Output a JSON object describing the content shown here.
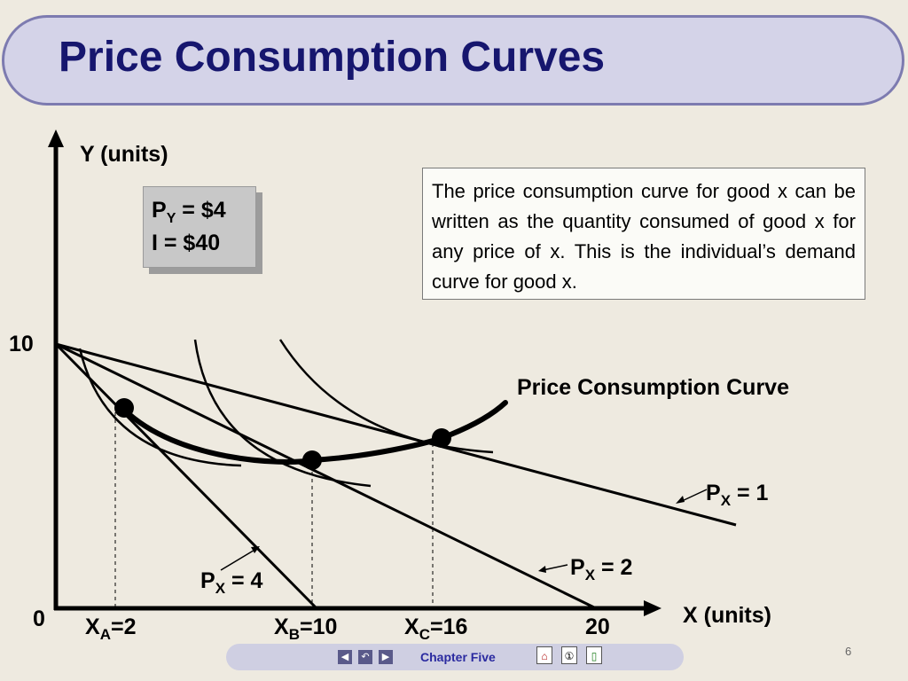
{
  "title": "Price Consumption Curves",
  "given": {
    "py_main": "P",
    "py_sub": "Y",
    "py_value": " = $4",
    "income": "I = $40"
  },
  "note": "The price consumption curve for good x can be written as the quantity consumed of good x for any price of x.  This is the individual’s demand curve for good x.",
  "axes": {
    "y_label": "Y (units)",
    "x_label": "X (units)",
    "y_tick": "10",
    "origin": "0",
    "x_end": "20"
  },
  "points": {
    "a": {
      "main": "X",
      "sub": "A",
      "value": "=2"
    },
    "b": {
      "main": "X",
      "sub": "B",
      "value": "=10"
    },
    "c": {
      "main": "X",
      "sub": "C",
      "value": "=16"
    }
  },
  "curve_label": "Price Consumption Curve",
  "budget_labels": {
    "px1": {
      "main": "P",
      "sub": "X",
      "value": " = 1"
    },
    "px2": {
      "main": "P",
      "sub": "X",
      "value": " = 2"
    },
    "px4": {
      "main": "P",
      "sub": "X",
      "value": " = 4"
    }
  },
  "footer": {
    "chapter": "Chapter Five",
    "page": "6",
    "nav_icons": [
      "prev-icon",
      "return-icon",
      "next-icon",
      "home-icon",
      "copyright-icon",
      "exit-icon"
    ]
  }
}
